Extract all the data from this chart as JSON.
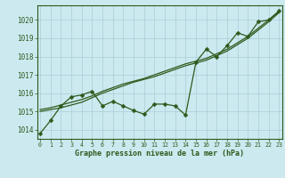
{
  "xlabel": "Graphe pression niveau de la mer (hPa)",
  "background_color": "#cce9f0",
  "grid_color": "#aacdd6",
  "line_color": "#2d5a1b",
  "x_values": [
    0,
    1,
    2,
    3,
    4,
    5,
    6,
    7,
    8,
    9,
    10,
    11,
    12,
    13,
    14,
    15,
    16,
    17,
    18,
    19,
    20,
    21,
    22,
    23
  ],
  "y_main": [
    1013.8,
    1014.5,
    1015.3,
    1015.8,
    1015.9,
    1016.1,
    1015.3,
    1015.55,
    1015.3,
    1015.05,
    1014.85,
    1015.4,
    1015.4,
    1015.3,
    1014.8,
    1017.7,
    1018.4,
    1018.0,
    1018.6,
    1019.3,
    1019.1,
    1019.9,
    1020.0,
    1020.5
  ],
  "y_smooth1": [
    1015.0,
    1015.1,
    1015.2,
    1015.35,
    1015.5,
    1015.75,
    1016.0,
    1016.2,
    1016.4,
    1016.6,
    1016.75,
    1016.9,
    1017.1,
    1017.3,
    1017.5,
    1017.65,
    1017.8,
    1018.05,
    1018.3,
    1018.65,
    1019.0,
    1019.45,
    1019.9,
    1020.4
  ],
  "y_smooth2": [
    1015.1,
    1015.2,
    1015.35,
    1015.5,
    1015.65,
    1015.85,
    1016.1,
    1016.3,
    1016.5,
    1016.65,
    1016.8,
    1017.0,
    1017.2,
    1017.4,
    1017.6,
    1017.75,
    1017.9,
    1018.15,
    1018.4,
    1018.75,
    1019.1,
    1019.55,
    1020.0,
    1020.45
  ],
  "ylim": [
    1013.5,
    1020.8
  ],
  "xlim": [
    -0.3,
    23.3
  ],
  "yticks": [
    1014,
    1015,
    1016,
    1017,
    1018,
    1019,
    1020
  ],
  "xticks": [
    0,
    1,
    2,
    3,
    4,
    5,
    6,
    7,
    8,
    9,
    10,
    11,
    12,
    13,
    14,
    15,
    16,
    17,
    18,
    19,
    20,
    21,
    22,
    23
  ],
  "marker_size": 2.5,
  "line_width": 0.9
}
